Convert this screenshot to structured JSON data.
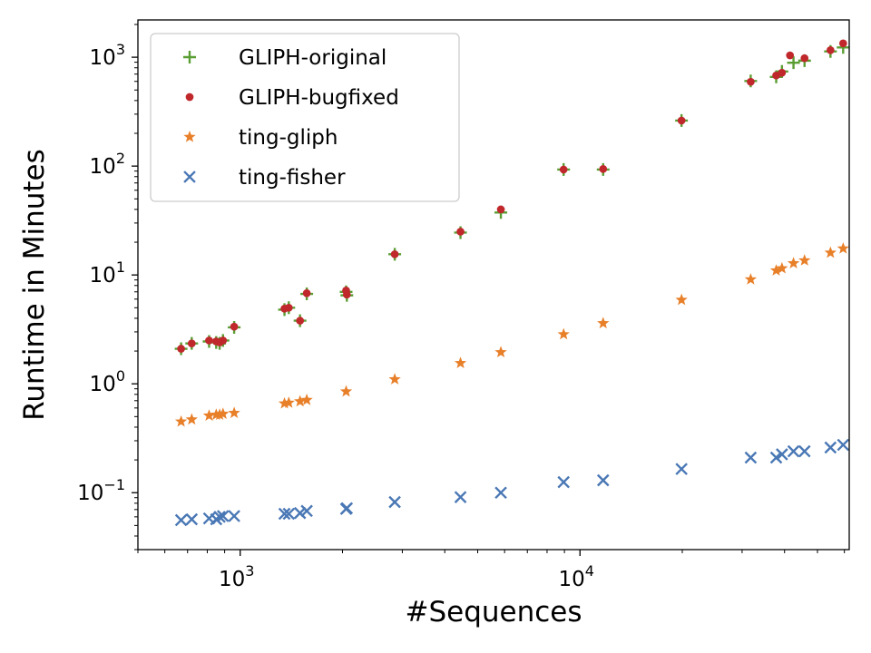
{
  "chart_data": {
    "type": "scatter",
    "xlabel": "#Sequences",
    "ylabel": "Runtime in Minutes",
    "xscale": "log",
    "yscale": "log",
    "xlim": [
      500,
      62000
    ],
    "ylim": [
      0.03,
      2200
    ],
    "grid": false,
    "legend_position": "top-left",
    "x_ticks": [
      {
        "value": 1000,
        "base": "10",
        "exp": "3"
      },
      {
        "value": 10000,
        "base": "10",
        "exp": "4"
      }
    ],
    "y_ticks": [
      {
        "value": 0.1,
        "base": "10",
        "exp": "−1"
      },
      {
        "value": 1,
        "base": "10",
        "exp": "0"
      },
      {
        "value": 10,
        "base": "10",
        "exp": "1"
      },
      {
        "value": 100,
        "base": "10",
        "exp": "2"
      },
      {
        "value": 1000,
        "base": "10",
        "exp": "3"
      }
    ],
    "series": [
      {
        "name": "GLIPH-original",
        "marker": "plus",
        "color": "#5a9e33",
        "x": [
          670,
          720,
          810,
          850,
          870,
          890,
          960,
          1350,
          1390,
          1500,
          1570,
          2050,
          2060,
          2850,
          4450,
          5850,
          8950,
          11700,
          19900,
          31800,
          37800,
          39300,
          42500,
          45800,
          54600,
          59500
        ],
        "y": [
          2.1,
          2.35,
          2.45,
          2.4,
          2.35,
          2.5,
          3.3,
          4.8,
          5.0,
          3.8,
          6.7,
          7.0,
          6.5,
          15.5,
          24.5,
          37.5,
          93,
          93,
          262,
          605,
          660,
          740,
          890,
          930,
          1130,
          1230
        ]
      },
      {
        "name": "GLIPH-bugfixed",
        "marker": "dot",
        "color": "#c0282c",
        "x": [
          670,
          720,
          810,
          850,
          870,
          890,
          960,
          1350,
          1390,
          1500,
          1570,
          2050,
          2060,
          2850,
          4450,
          5850,
          8950,
          11700,
          19900,
          31800,
          37800,
          39300,
          41500,
          45800,
          54600,
          59500
        ],
        "y": [
          2.1,
          2.35,
          2.5,
          2.45,
          2.4,
          2.5,
          3.35,
          4.9,
          5.0,
          3.8,
          6.8,
          7.2,
          6.6,
          15.5,
          25,
          40,
          93,
          94,
          262,
          595,
          680,
          720,
          1040,
          980,
          1160,
          1340
        ]
      },
      {
        "name": "ting-gliph",
        "marker": "star",
        "color": "#e8802a",
        "x": [
          670,
          720,
          810,
          850,
          870,
          890,
          960,
          1350,
          1390,
          1500,
          1570,
          2050,
          2850,
          4450,
          5850,
          8950,
          11700,
          19900,
          31800,
          37800,
          39300,
          42500,
          45800,
          54600,
          59500
        ],
        "y": [
          0.45,
          0.47,
          0.51,
          0.52,
          0.52,
          0.53,
          0.54,
          0.66,
          0.67,
          0.69,
          0.71,
          0.85,
          1.1,
          1.55,
          1.95,
          2.85,
          3.6,
          5.9,
          9.1,
          11.0,
          11.5,
          12.8,
          13.6,
          16.0,
          17.5
        ]
      },
      {
        "name": "ting-fisher",
        "marker": "x",
        "color": "#4a78b5",
        "x": [
          670,
          720,
          810,
          850,
          870,
          890,
          960,
          1350,
          1390,
          1500,
          1570,
          2050,
          2060,
          2850,
          4450,
          5850,
          8950,
          11700,
          19900,
          31800,
          37800,
          39300,
          42500,
          45800,
          54600,
          59500
        ],
        "y": [
          0.056,
          0.057,
          0.058,
          0.057,
          0.06,
          0.061,
          0.061,
          0.064,
          0.064,
          0.065,
          0.068,
          0.071,
          0.072,
          0.082,
          0.091,
          0.1,
          0.125,
          0.13,
          0.165,
          0.21,
          0.21,
          0.225,
          0.24,
          0.24,
          0.26,
          0.275
        ]
      }
    ]
  }
}
